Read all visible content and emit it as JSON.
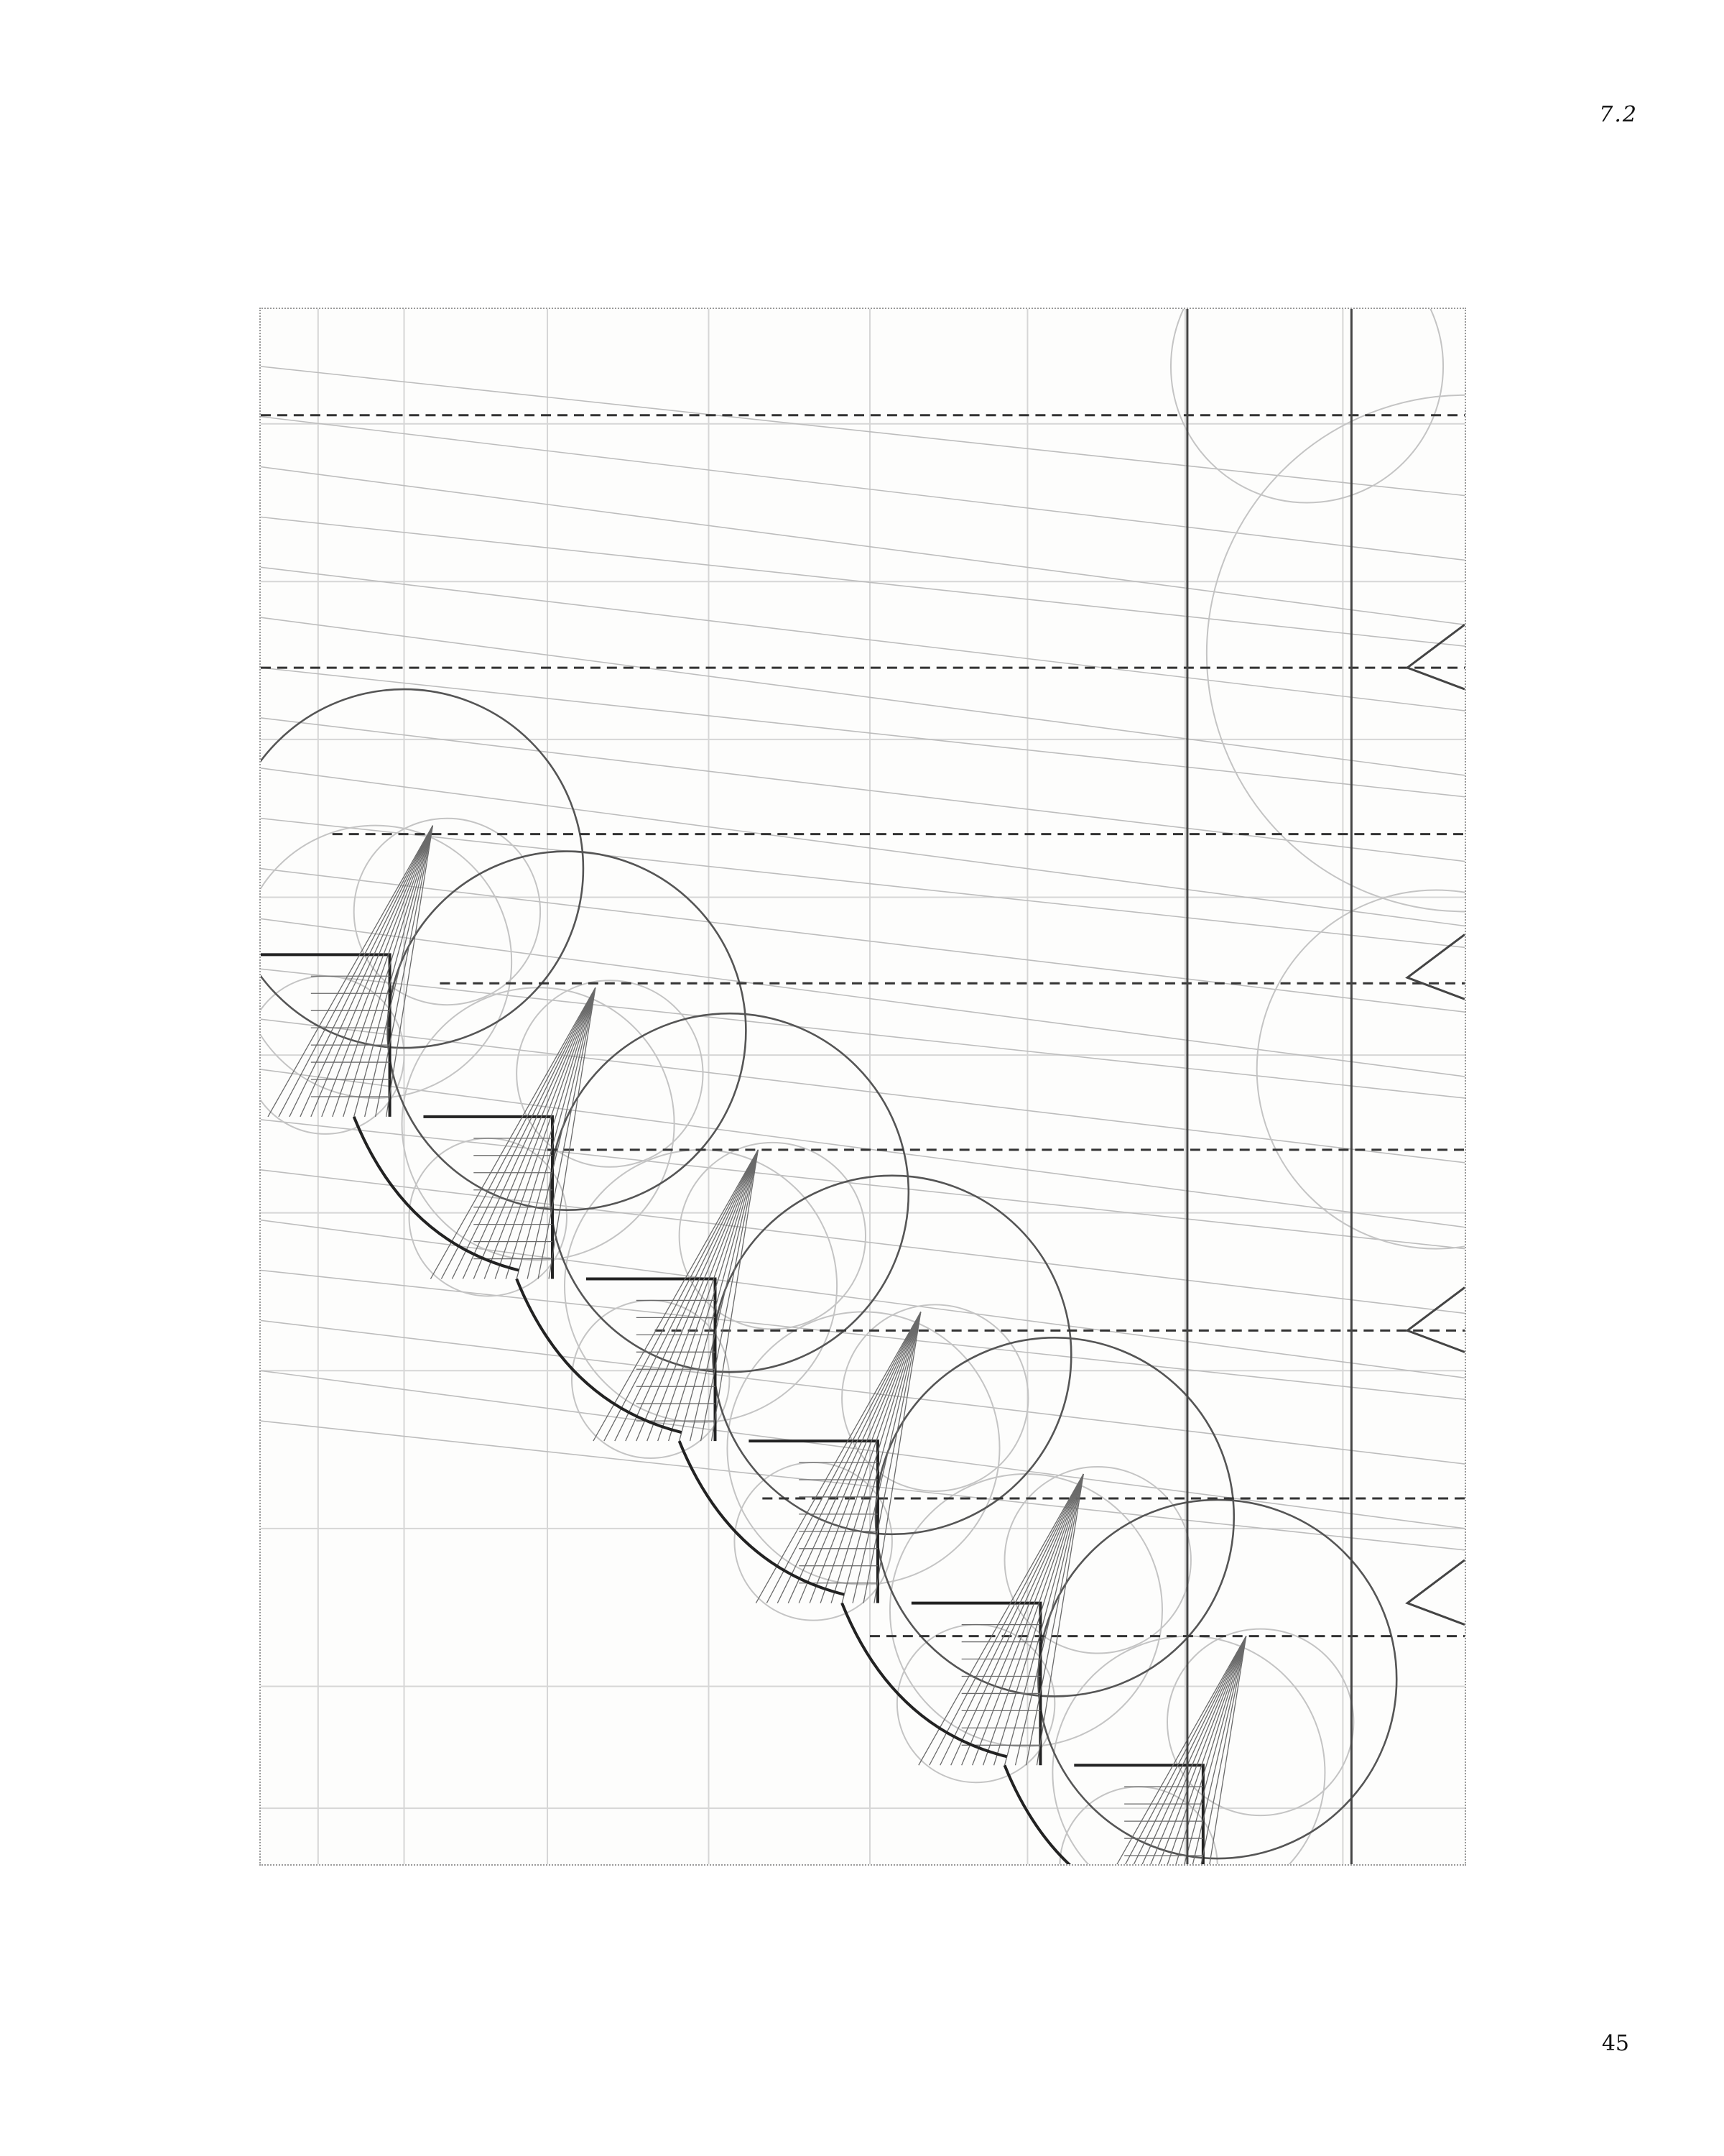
{
  "header": {
    "section_number": "7.2"
  },
  "footer": {
    "page_number": "45"
  },
  "figure": {
    "icon": "geometric-construction-drawing-icon",
    "line_color": "#3a3a3a",
    "faint_color": "#b8b8b8"
  }
}
